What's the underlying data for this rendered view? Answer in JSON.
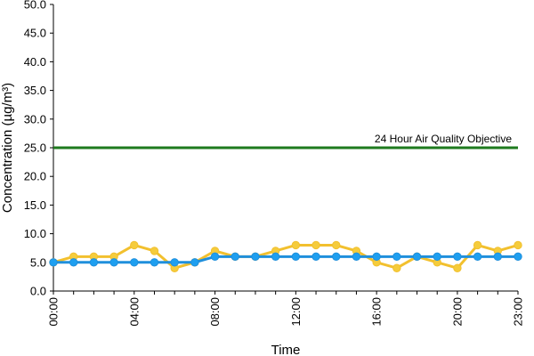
{
  "chart_data": {
    "type": "line",
    "title": "",
    "xlabel": "Time",
    "ylabel": "Concentration (µg/m³)",
    "ylim": [
      0,
      50
    ],
    "yticks": [
      "0.0",
      "5.0",
      "10.0",
      "15.0",
      "20.0",
      "25.0",
      "30.0",
      "35.0",
      "40.0",
      "45.0",
      "50.0"
    ],
    "x": [
      "00:00",
      "01:00",
      "02:00",
      "03:00",
      "04:00",
      "05:00",
      "06:00",
      "07:00",
      "08:00",
      "09:00",
      "10:00",
      "11:00",
      "12:00",
      "13:00",
      "14:00",
      "15:00",
      "16:00",
      "17:00",
      "18:00",
      "19:00",
      "20:00",
      "21:00",
      "22:00",
      "23:00"
    ],
    "xtick_labels": [
      "00:00",
      "04:00",
      "08:00",
      "12:00",
      "16:00",
      "20:00",
      "23:00"
    ],
    "grid": false,
    "legend": "none",
    "series": [
      {
        "color": "#f2c02e",
        "marker_color": "#f5cc3c",
        "values": [
          5,
          6,
          6,
          6,
          8,
          7,
          4,
          5,
          7,
          6,
          6,
          7,
          8,
          8,
          8,
          7,
          5,
          4,
          6,
          5,
          4,
          8,
          7,
          8
        ]
      },
      {
        "color": "#1f8fdc",
        "marker_color": "#1e9ff0",
        "values": [
          5,
          5,
          5,
          5,
          5,
          5,
          5,
          5,
          6,
          6,
          6,
          6,
          6,
          6,
          6,
          6,
          6,
          6,
          6,
          6,
          6,
          6,
          6,
          6
        ]
      }
    ],
    "reference_line": {
      "label": "24 Hour Air Quality Objective",
      "value": 25,
      "color": "#1e7a1e"
    }
  }
}
